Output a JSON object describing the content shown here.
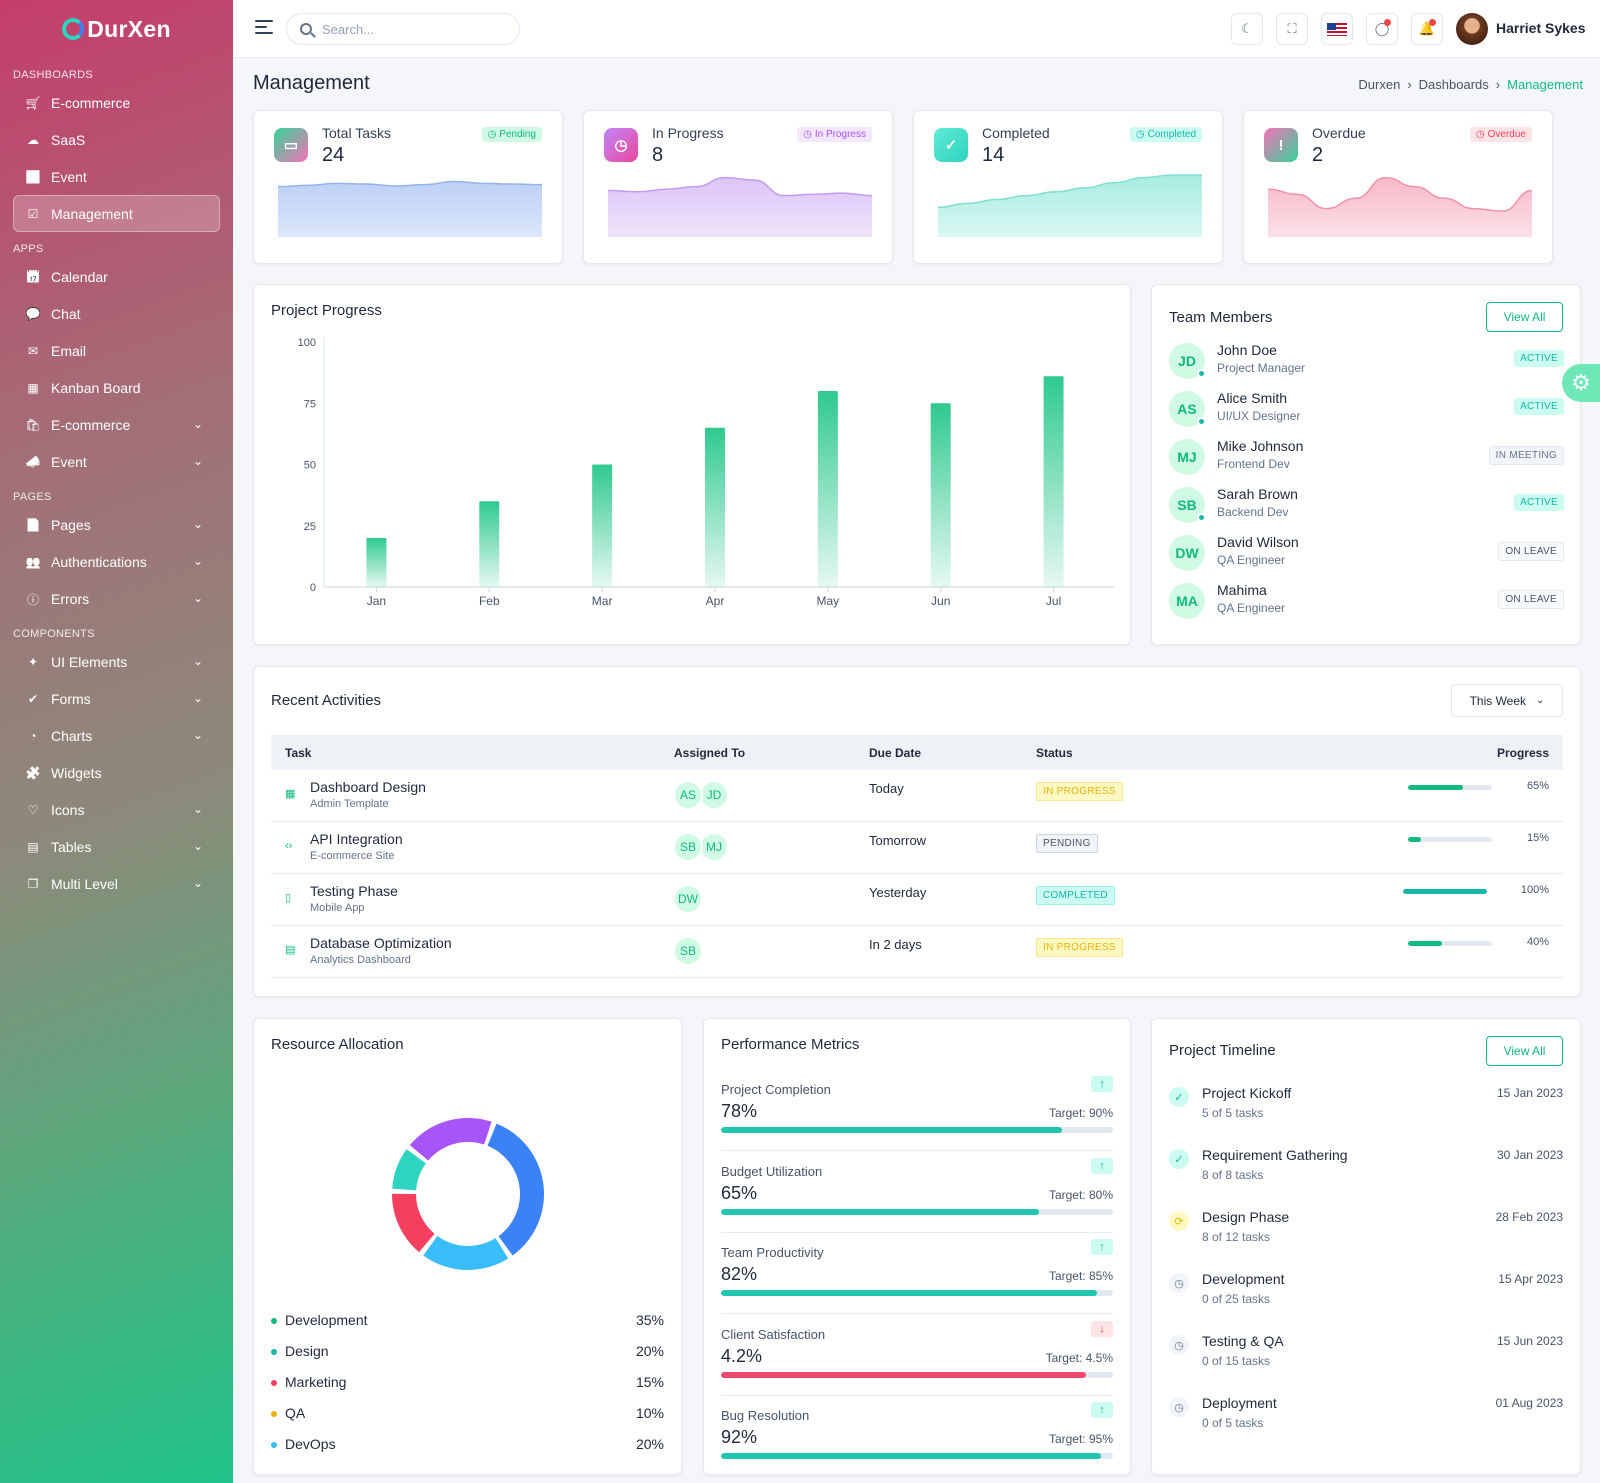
{
  "brand": {
    "name": "DurXen"
  },
  "sidebar": {
    "sections": [
      {
        "title": "DASHBOARDS",
        "items": [
          {
            "label": "E-commerce",
            "icon": "cart-icon",
            "glyph": "🛒",
            "chevron": false
          },
          {
            "label": "SaaS",
            "icon": "cloud-icon",
            "glyph": "☁",
            "chevron": false
          },
          {
            "label": "Event",
            "icon": "bar-chart-icon",
            "glyph": "📊",
            "chevron": false
          },
          {
            "label": "Management",
            "icon": "checkbox-icon",
            "glyph": "☑",
            "chevron": false,
            "active": true
          }
        ]
      },
      {
        "title": "APPS",
        "items": [
          {
            "label": "Calendar",
            "icon": "calendar-icon",
            "glyph": "📅",
            "chevron": false
          },
          {
            "label": "Chat",
            "icon": "chat-icon",
            "glyph": "💬",
            "chevron": false
          },
          {
            "label": "Email",
            "icon": "email-icon",
            "glyph": "✉",
            "chevron": false
          },
          {
            "label": "Kanban Board",
            "icon": "kanban-icon",
            "glyph": "▦",
            "chevron": false
          },
          {
            "label": "E-commerce",
            "icon": "bag-icon",
            "glyph": "🛍",
            "chevron": true
          },
          {
            "label": "Event",
            "icon": "megaphone-icon",
            "glyph": "📣",
            "chevron": true
          }
        ]
      },
      {
        "title": "PAGES",
        "items": [
          {
            "label": "Pages",
            "icon": "document-icon",
            "glyph": "📄",
            "chevron": true
          },
          {
            "label": "Authentications",
            "icon": "users-icon",
            "glyph": "👥",
            "chevron": true
          },
          {
            "label": "Errors",
            "icon": "alert-circle-icon",
            "glyph": "ⓘ",
            "chevron": true
          }
        ]
      },
      {
        "title": "COMPONENTS",
        "items": [
          {
            "label": "UI Elements",
            "icon": "ui-elements-icon",
            "glyph": "✦",
            "chevron": true
          },
          {
            "label": "Forms",
            "icon": "forms-icon",
            "glyph": "✔",
            "chevron": true
          },
          {
            "label": "Charts",
            "icon": "pie-chart-icon",
            "glyph": "◔",
            "chevron": true
          },
          {
            "label": "Widgets",
            "icon": "widgets-icon",
            "glyph": "🧩",
            "chevron": false
          },
          {
            "label": "Icons",
            "icon": "heart-icon",
            "glyph": "♡",
            "chevron": true
          },
          {
            "label": "Tables",
            "icon": "table-icon",
            "glyph": "▤",
            "chevron": true
          },
          {
            "label": "Multi Level",
            "icon": "layers-icon",
            "glyph": "❐",
            "chevron": true
          }
        ]
      }
    ]
  },
  "topbar": {
    "search_placeholder": "Search...",
    "user_name": "Harriet Sykes"
  },
  "page": {
    "title": "Management",
    "breadcrumb": [
      "Durxen",
      "Dashboards",
      "Management"
    ]
  },
  "stats": [
    {
      "label": "Total Tasks",
      "value": "24",
      "badge": "Pending",
      "color": "#10b981",
      "icon": "clipboard-icon",
      "glyph": "▭",
      "icon_bg": "linear-gradient(135deg,#34d399,#f472b6)",
      "badge_bg": "#d1fae5",
      "badge_color": "#10b981",
      "stroke": "#93b4e6",
      "fill_top": "#bcd0f5",
      "fill_bot": "#dce7fb",
      "series": [
        78,
        80,
        83,
        82,
        79,
        81,
        86,
        83,
        82,
        81
      ]
    },
    {
      "label": "In Progress",
      "value": "8",
      "badge": "In Progress",
      "icon": "clock-icon",
      "glyph": "◷",
      "icon_bg": "linear-gradient(135deg,#c084fc,#ec4899)",
      "badge_bg": "#f3e8ff",
      "badge_color": "#a855f7",
      "stroke": "#c39af0",
      "fill_top": "#dcc4f7",
      "fill_bot": "#efe3fb",
      "series": [
        72,
        70,
        74,
        78,
        92,
        88,
        64,
        66,
        68,
        64
      ]
    },
    {
      "label": "Completed",
      "value": "14",
      "badge": "Completed",
      "icon": "check-icon",
      "glyph": "✓",
      "icon_bg": "linear-gradient(135deg,#5eead4,#2dd4bf)",
      "badge_bg": "#ccfbf1",
      "badge_color": "#14b8a6",
      "stroke": "#7fe0d2",
      "fill_top": "#a8ece2",
      "fill_bot": "#daf7f2",
      "series": [
        46,
        52,
        58,
        64,
        70,
        76,
        84,
        92,
        96,
        96
      ]
    },
    {
      "label": "Overdue",
      "value": "2",
      "badge": "Overdue",
      "icon": "exclamation-icon",
      "glyph": "!",
      "icon_bg": "linear-gradient(135deg,#f472b6,#34d399)",
      "badge_bg": "#ffe4e6",
      "badge_color": "#f43f5e",
      "stroke": "#f191ab",
      "fill_top": "#f7b8c8",
      "fill_bot": "#fce1e8",
      "series": [
        74,
        66,
        44,
        60,
        92,
        78,
        60,
        44,
        40,
        72
      ]
    }
  ],
  "project_progress": {
    "title": "Project Progress",
    "chart_data": {
      "type": "bar",
      "categories": [
        "Jan",
        "Feb",
        "Mar",
        "Apr",
        "May",
        "Jun",
        "Jul"
      ],
      "values": [
        20,
        35,
        50,
        65,
        80,
        75,
        86
      ],
      "ylim": [
        0,
        100
      ],
      "yticks": [
        0,
        25,
        50,
        75,
        100
      ],
      "color": "#2fc98f"
    }
  },
  "team": {
    "title": "Team Members",
    "view_all": "View All",
    "members": [
      {
        "initials": "JD",
        "name": "John Doe",
        "role": "Project Manager",
        "status": "ACTIVE",
        "kind": "active",
        "online": true
      },
      {
        "initials": "AS",
        "name": "Alice Smith",
        "role": "UI/UX Designer",
        "status": "ACTIVE",
        "kind": "active",
        "online": true
      },
      {
        "initials": "MJ",
        "name": "Mike Johnson",
        "role": "Frontend Dev",
        "status": "IN MEETING",
        "kind": "meet",
        "online": false
      },
      {
        "initials": "SB",
        "name": "Sarah Brown",
        "role": "Backend Dev",
        "status": "ACTIVE",
        "kind": "active",
        "online": true
      },
      {
        "initials": "DW",
        "name": "David Wilson",
        "role": "QA Engineer",
        "status": "ON LEAVE",
        "kind": "leave",
        "online": false
      },
      {
        "initials": "MA",
        "name": "Mahima",
        "role": "QA Engineer",
        "status": "ON LEAVE",
        "kind": "leave",
        "online": false
      }
    ]
  },
  "activities": {
    "title": "Recent Activities",
    "filter": "This Week",
    "headers": [
      "Task",
      "Assigned To",
      "Due Date",
      "Status",
      "Progress"
    ],
    "rows": [
      {
        "task": "Dashboard Design",
        "sub": "Admin Template",
        "icon": "layout-icon",
        "glyph": "▦",
        "assignees": [
          "AS",
          "JD"
        ],
        "due": "Today",
        "status": "IN PROGRESS",
        "kind": "ip",
        "progress": 65,
        "progress_label": "65%",
        "bar": "#10b981"
      },
      {
        "task": "API Integration",
        "sub": "E-commerce Site",
        "icon": "code-icon",
        "glyph": "‹›",
        "assignees": [
          "SB",
          "MJ"
        ],
        "due": "Tomorrow",
        "status": "PENDING",
        "kind": "pe",
        "progress": 15,
        "progress_label": "15%",
        "bar": "#10b981"
      },
      {
        "task": "Testing Phase",
        "sub": "Mobile App",
        "icon": "mobile-icon",
        "glyph": "▯",
        "assignees": [
          "DW"
        ],
        "due": "Yesterday",
        "status": "COMPLETED",
        "kind": "co",
        "progress": 100,
        "progress_label": "100%",
        "bar": "#14b8a6"
      },
      {
        "task": "Database Optimization",
        "sub": "Analytics Dashboard",
        "icon": "database-icon",
        "glyph": "▤",
        "assignees": [
          "SB"
        ],
        "due": "In 2 days",
        "status": "IN PROGRESS",
        "kind": "ip",
        "progress": 40,
        "progress_label": "40%",
        "bar": "#10b981"
      }
    ]
  },
  "resources": {
    "title": "Resource Allocation",
    "chart_data": {
      "type": "pie",
      "categories": [
        "Development",
        "Design",
        "Marketing",
        "QA",
        "DevOps"
      ],
      "values": [
        35,
        20,
        15,
        10,
        20
      ],
      "labels": [
        "35%",
        "20%",
        "15%",
        "10%",
        "20%"
      ],
      "colors": [
        "#10b981",
        "#14b8a6",
        "#f43f5e",
        "#eab308",
        "#38bdf8"
      ],
      "ring_colors": [
        "#3b82f6",
        "#38bdf8",
        "#f43f5e",
        "#2dd4bf",
        "#a855f7"
      ]
    }
  },
  "performance": {
    "title": "Performance Metrics",
    "metrics": [
      {
        "name": "Project Completion",
        "value": "78%",
        "target": "Target: 90%",
        "fill": 87,
        "trend": "↑",
        "up": true,
        "color": "#20c6b0"
      },
      {
        "name": "Budget Utilization",
        "value": "65%",
        "target": "Target: 80%",
        "fill": 81,
        "trend": "↑",
        "up": true,
        "color": "#20c6b0"
      },
      {
        "name": "Team Productivity",
        "value": "82%",
        "target": "Target: 85%",
        "fill": 96,
        "trend": "↑",
        "up": true,
        "color": "#20c6b0"
      },
      {
        "name": "Client Satisfaction",
        "value": "4.2%",
        "target": "Target: 4.5%",
        "fill": 93,
        "trend": "↓",
        "up": false,
        "color": "#ef476f"
      },
      {
        "name": "Bug Resolution",
        "value": "92%",
        "target": "Target: 95%",
        "fill": 97,
        "trend": "↑",
        "up": true,
        "color": "#20c6b0"
      }
    ]
  },
  "timeline": {
    "title": "Project Timeline",
    "view_all": "View All",
    "items": [
      {
        "name": "Project Kickoff",
        "sub": "5 of 5 tasks",
        "date": "15 Jan 2023",
        "state": "done"
      },
      {
        "name": "Requirement Gathering",
        "sub": "8 of 8 tasks",
        "date": "30 Jan 2023",
        "state": "done"
      },
      {
        "name": "Design Phase",
        "sub": "8 of 12 tasks",
        "date": "28 Feb 2023",
        "state": "progress"
      },
      {
        "name": "Development",
        "sub": "0 of 25 tasks",
        "date": "15 Apr 2023",
        "state": "pending"
      },
      {
        "name": "Testing & QA",
        "sub": "0 of 15 tasks",
        "date": "15 Jun 2023",
        "state": "pending"
      },
      {
        "name": "Deployment",
        "sub": "0 of 5 tasks",
        "date": "01 Aug 2023",
        "state": "pending"
      }
    ]
  }
}
